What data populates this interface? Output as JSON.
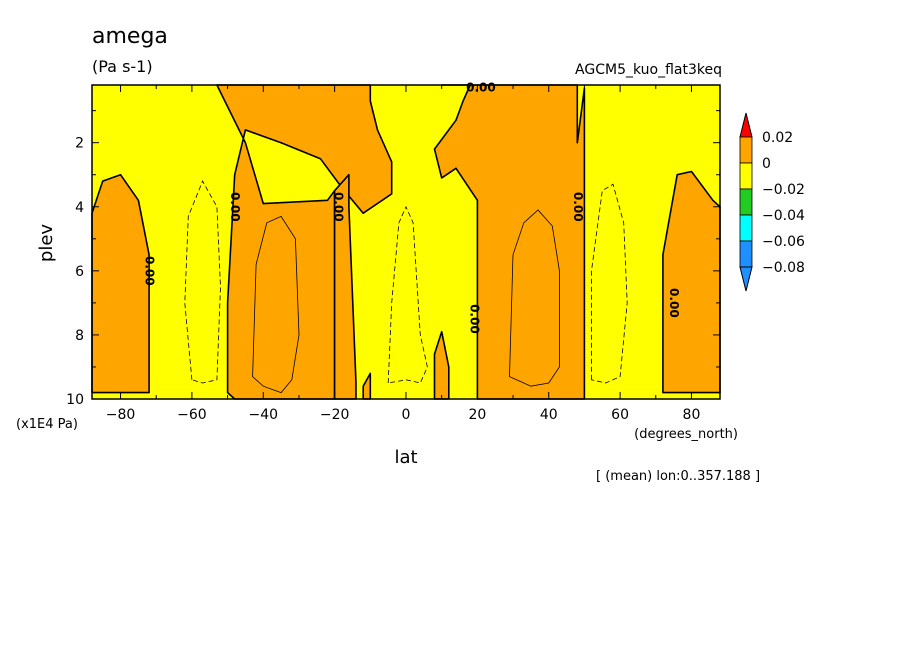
{
  "colors": {
    "orange": "#ffa500",
    "yellow": "#ffff00",
    "red": "#ff0000",
    "green": "#22cc22",
    "cyan": "#00ffff",
    "blue": "#1f90ff",
    "line": "#000000"
  },
  "chart_data": {
    "type": "heatmap",
    "title": "amega",
    "units": "(Pa s-1)",
    "run_label": "AGCM5_kuo_flat3keq",
    "footer": "[ (mean) lon:0..357.188 ]",
    "xlabel": "lat",
    "xunits": "(degrees_north)",
    "ylabel": "plev",
    "yunits": "(x1E4 Pa)",
    "xlim": [
      -88,
      88
    ],
    "ylim": [
      10,
      0.2
    ],
    "x_ticks": [
      -80,
      -60,
      -40,
      -20,
      0,
      20,
      40,
      60,
      80
    ],
    "y_ticks": [
      2,
      4,
      6,
      8,
      10
    ],
    "contour_label": "0.00",
    "contour_levels": [
      0.02,
      0,
      -0.02,
      -0.04,
      -0.06,
      -0.08
    ],
    "colorbar_labels": [
      "0.02",
      "0",
      "−0.02",
      "−0.04",
      "−0.06",
      "−0.08"
    ],
    "regions": {
      "positive": [
        [
          [
            -88,
            4.2
          ],
          [
            -85,
            3.2
          ],
          [
            -80,
            3.0
          ],
          [
            -75,
            3.8
          ],
          [
            -72,
            5.5
          ],
          [
            -72,
            9.8
          ],
          [
            -88,
            9.8
          ]
        ],
        [
          [
            -53,
            0.2
          ],
          [
            -10,
            0.2
          ],
          [
            -10,
            0.7
          ],
          [
            -8,
            1.6
          ],
          [
            -4,
            2.6
          ],
          [
            -4,
            3.6
          ],
          [
            -12,
            4.2
          ],
          [
            -18,
            3.4
          ],
          [
            -24,
            2.5
          ],
          [
            -35,
            2.0
          ],
          [
            -45,
            1.6
          ],
          [
            -48,
            3.0
          ],
          [
            -50,
            7.0
          ],
          [
            -50,
            9.8
          ],
          [
            -48,
            10
          ],
          [
            -20,
            10
          ],
          [
            -20,
            3.5
          ],
          [
            -22,
            3.8
          ],
          [
            -40,
            3.9
          ],
          [
            -45,
            2.0
          ]
        ],
        [
          [
            -20,
            10
          ],
          [
            -20,
            3.5
          ],
          [
            -16,
            3.0
          ],
          [
            -16,
            4.0
          ],
          [
            -14,
            9.5
          ],
          [
            -14,
            10
          ]
        ],
        [
          [
            10,
            0.2
          ],
          [
            48,
            0.2
          ],
          [
            48,
            2.0
          ],
          [
            50,
            0.3
          ],
          [
            50,
            10
          ],
          [
            20,
            10
          ],
          [
            20,
            3.8
          ],
          [
            14,
            2.8
          ],
          [
            10,
            3.1
          ],
          [
            8,
            2.2
          ],
          [
            14,
            1.3
          ],
          [
            16,
            0.7
          ],
          [
            18,
            0.2
          ]
        ],
        [
          [
            72,
            9.8
          ],
          [
            72,
            5.5
          ],
          [
            76,
            3.0
          ],
          [
            80,
            2.9
          ],
          [
            86,
            3.8
          ],
          [
            88,
            4.0
          ],
          [
            88,
            9.8
          ]
        ],
        [
          [
            8,
            8.6
          ],
          [
            10,
            7.9
          ],
          [
            12,
            9.0
          ],
          [
            12,
            10
          ],
          [
            8,
            10
          ]
        ],
        [
          [
            -12,
            9.6
          ],
          [
            -10,
            9.2
          ],
          [
            -10,
            10
          ],
          [
            -12,
            10
          ]
        ]
      ],
      "positive_sub_contours": [
        [
          [
            -43,
            9.3
          ],
          [
            -42,
            5.8
          ],
          [
            -39,
            4.5
          ],
          [
            -35,
            4.3
          ],
          [
            -31,
            5.0
          ],
          [
            -30,
            8.0
          ],
          [
            -32,
            9.4
          ],
          [
            -35,
            9.8
          ],
          [
            -40,
            9.6
          ]
        ],
        [
          [
            29,
            9.3
          ],
          [
            30,
            5.5
          ],
          [
            33,
            4.5
          ],
          [
            37,
            4.1
          ],
          [
            41,
            4.6
          ],
          [
            43,
            6.0
          ],
          [
            43,
            9.0
          ],
          [
            40,
            9.5
          ],
          [
            35,
            9.6
          ]
        ]
      ],
      "negative_dashed": [
        [
          [
            -60,
            9.4
          ],
          [
            -62,
            7.0
          ],
          [
            -61,
            4.3
          ],
          [
            -57,
            3.2
          ],
          [
            -53,
            4.0
          ],
          [
            -52,
            6.5
          ],
          [
            -53,
            9.4
          ],
          [
            -57,
            9.5
          ]
        ],
        [
          [
            -5,
            9.5
          ],
          [
            -4,
            7.0
          ],
          [
            -2,
            4.5
          ],
          [
            0,
            4.0
          ],
          [
            2,
            4.5
          ],
          [
            4,
            8.0
          ],
          [
            6,
            9.0
          ],
          [
            4,
            9.5
          ],
          [
            0,
            9.4
          ]
        ],
        [
          [
            52,
            9.4
          ],
          [
            52,
            6.0
          ],
          [
            55,
            3.5
          ],
          [
            58,
            3.3
          ],
          [
            61,
            4.5
          ],
          [
            62,
            7.0
          ],
          [
            60,
            9.3
          ],
          [
            56,
            9.5
          ]
        ]
      ],
      "contour_label_positions": [
        [
          -72,
          6.0,
          90
        ],
        [
          -48,
          4.0,
          90
        ],
        [
          -19,
          4.0,
          90
        ],
        [
          19,
          7.5,
          90
        ],
        [
          48,
          4.0,
          90
        ],
        [
          75,
          7.0,
          90
        ],
        [
          21,
          0.3,
          0
        ]
      ]
    }
  }
}
